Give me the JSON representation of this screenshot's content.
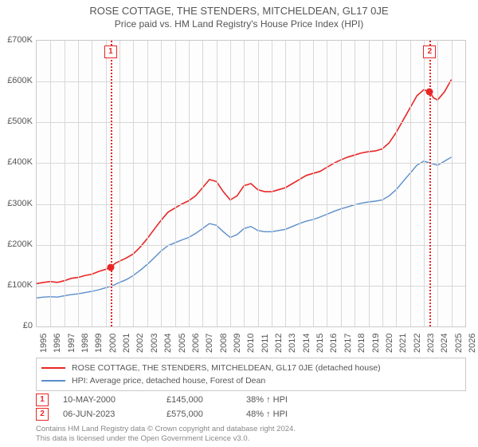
{
  "title": "ROSE COTTAGE, THE STENDERS, MITCHELDEAN, GL17 0JE",
  "subtitle": "Price paid vs. HM Land Registry's House Price Index (HPI)",
  "chart": {
    "type": "line",
    "background_color": "#fdfdfd",
    "grid_color": "#d8d8d8",
    "border_color": "#c9c9c9",
    "title_fontsize": 13,
    "subtitle_fontsize": 12,
    "tick_fontsize": 11,
    "x": {
      "min": 1995,
      "max": 2026,
      "ticks": [
        1995,
        1996,
        1997,
        1998,
        1999,
        2000,
        2001,
        2002,
        2003,
        2004,
        2005,
        2006,
        2007,
        2008,
        2009,
        2010,
        2011,
        2012,
        2013,
        2014,
        2015,
        2016,
        2017,
        2018,
        2019,
        2020,
        2021,
        2022,
        2023,
        2024,
        2025,
        2026
      ]
    },
    "y": {
      "min": 0,
      "max": 700000,
      "ticks": [
        0,
        100000,
        200000,
        300000,
        400000,
        500000,
        600000,
        700000
      ],
      "tick_labels": [
        "£0",
        "£100K",
        "£200K",
        "£300K",
        "£400K",
        "£500K",
        "£600K",
        "£700K"
      ]
    },
    "series": [
      {
        "name": "ROSE COTTAGE, THE STENDERS, MITCHELDEAN, GL17 0JE (detached house)",
        "color": "#e92626",
        "line_width": 1.6,
        "data": [
          [
            1995.0,
            105000
          ],
          [
            1995.5,
            108000
          ],
          [
            1996.0,
            110000
          ],
          [
            1996.5,
            108000
          ],
          [
            1997.0,
            112000
          ],
          [
            1997.5,
            118000
          ],
          [
            1998.0,
            120000
          ],
          [
            1998.5,
            125000
          ],
          [
            1999.0,
            128000
          ],
          [
            1999.5,
            135000
          ],
          [
            2000.0,
            140000
          ],
          [
            2000.35,
            145000
          ],
          [
            2000.7,
            155000
          ],
          [
            2001.0,
            160000
          ],
          [
            2001.5,
            168000
          ],
          [
            2002.0,
            178000
          ],
          [
            2002.5,
            195000
          ],
          [
            2003.0,
            215000
          ],
          [
            2003.5,
            238000
          ],
          [
            2004.0,
            260000
          ],
          [
            2004.5,
            280000
          ],
          [
            2005.0,
            290000
          ],
          [
            2005.5,
            300000
          ],
          [
            2006.0,
            308000
          ],
          [
            2006.5,
            320000
          ],
          [
            2007.0,
            340000
          ],
          [
            2007.5,
            360000
          ],
          [
            2008.0,
            355000
          ],
          [
            2008.5,
            330000
          ],
          [
            2009.0,
            310000
          ],
          [
            2009.5,
            320000
          ],
          [
            2010.0,
            345000
          ],
          [
            2010.5,
            350000
          ],
          [
            2011.0,
            335000
          ],
          [
            2011.5,
            330000
          ],
          [
            2012.0,
            330000
          ],
          [
            2012.5,
            335000
          ],
          [
            2013.0,
            340000
          ],
          [
            2013.5,
            350000
          ],
          [
            2014.0,
            360000
          ],
          [
            2014.5,
            370000
          ],
          [
            2015.0,
            375000
          ],
          [
            2015.5,
            380000
          ],
          [
            2016.0,
            390000
          ],
          [
            2016.5,
            400000
          ],
          [
            2017.0,
            408000
          ],
          [
            2017.5,
            415000
          ],
          [
            2018.0,
            420000
          ],
          [
            2018.5,
            425000
          ],
          [
            2019.0,
            428000
          ],
          [
            2019.5,
            430000
          ],
          [
            2020.0,
            435000
          ],
          [
            2020.5,
            450000
          ],
          [
            2021.0,
            475000
          ],
          [
            2021.5,
            505000
          ],
          [
            2022.0,
            535000
          ],
          [
            2022.5,
            565000
          ],
          [
            2023.0,
            580000
          ],
          [
            2023.43,
            575000
          ],
          [
            2023.7,
            560000
          ],
          [
            2024.0,
            555000
          ],
          [
            2024.5,
            575000
          ],
          [
            2025.0,
            605000
          ]
        ]
      },
      {
        "name": "HPI: Average price, detached house, Forest of Dean",
        "color": "#5b8ecb",
        "line_width": 1.4,
        "data": [
          [
            1995.0,
            70000
          ],
          [
            1995.5,
            72000
          ],
          [
            1996.0,
            73000
          ],
          [
            1996.5,
            72000
          ],
          [
            1997.0,
            75000
          ],
          [
            1997.5,
            78000
          ],
          [
            1998.0,
            80000
          ],
          [
            1998.5,
            83000
          ],
          [
            1999.0,
            86000
          ],
          [
            1999.5,
            90000
          ],
          [
            2000.0,
            95000
          ],
          [
            2000.5,
            100000
          ],
          [
            2001.0,
            108000
          ],
          [
            2001.5,
            115000
          ],
          [
            2002.0,
            125000
          ],
          [
            2002.5,
            138000
          ],
          [
            2003.0,
            152000
          ],
          [
            2003.5,
            168000
          ],
          [
            2004.0,
            185000
          ],
          [
            2004.5,
            198000
          ],
          [
            2005.0,
            205000
          ],
          [
            2005.5,
            212000
          ],
          [
            2006.0,
            218000
          ],
          [
            2006.5,
            228000
          ],
          [
            2007.0,
            240000
          ],
          [
            2007.5,
            252000
          ],
          [
            2008.0,
            248000
          ],
          [
            2008.5,
            232000
          ],
          [
            2009.0,
            218000
          ],
          [
            2009.5,
            225000
          ],
          [
            2010.0,
            240000
          ],
          [
            2010.5,
            245000
          ],
          [
            2011.0,
            235000
          ],
          [
            2011.5,
            232000
          ],
          [
            2012.0,
            232000
          ],
          [
            2012.5,
            235000
          ],
          [
            2013.0,
            238000
          ],
          [
            2013.5,
            245000
          ],
          [
            2014.0,
            252000
          ],
          [
            2014.5,
            258000
          ],
          [
            2015.0,
            262000
          ],
          [
            2015.5,
            268000
          ],
          [
            2016.0,
            275000
          ],
          [
            2016.5,
            282000
          ],
          [
            2017.0,
            288000
          ],
          [
            2017.5,
            293000
          ],
          [
            2018.0,
            298000
          ],
          [
            2018.5,
            302000
          ],
          [
            2019.0,
            305000
          ],
          [
            2019.5,
            307000
          ],
          [
            2020.0,
            310000
          ],
          [
            2020.5,
            320000
          ],
          [
            2021.0,
            335000
          ],
          [
            2021.5,
            355000
          ],
          [
            2022.0,
            375000
          ],
          [
            2022.5,
            395000
          ],
          [
            2023.0,
            405000
          ],
          [
            2023.5,
            400000
          ],
          [
            2024.0,
            395000
          ],
          [
            2024.5,
            405000
          ],
          [
            2025.0,
            415000
          ]
        ]
      }
    ],
    "markers": [
      {
        "id": "1",
        "x": 2000.35,
        "y": 145000,
        "line_color": "#e92626",
        "dot_color": "#e92626"
      },
      {
        "id": "2",
        "x": 2023.43,
        "y": 575000,
        "line_color": "#e92626",
        "dot_color": "#e92626"
      }
    ]
  },
  "legend": {
    "items": [
      {
        "color": "#e92626",
        "label": "ROSE COTTAGE, THE STENDERS, MITCHELDEAN, GL17 0JE (detached house)"
      },
      {
        "color": "#5b8ecb",
        "label": "HPI: Average price, detached house, Forest of Dean"
      }
    ]
  },
  "annotations": [
    {
      "id": "1",
      "date": "10-MAY-2000",
      "price": "£145,000",
      "pct": "38% ↑ HPI"
    },
    {
      "id": "2",
      "date": "06-JUN-2023",
      "price": "£575,000",
      "pct": "48% ↑ HPI"
    }
  ],
  "credits": {
    "line1": "Contains HM Land Registry data © Crown copyright and database right 2024.",
    "line2": "This data is licensed under the Open Government Licence v3.0."
  }
}
